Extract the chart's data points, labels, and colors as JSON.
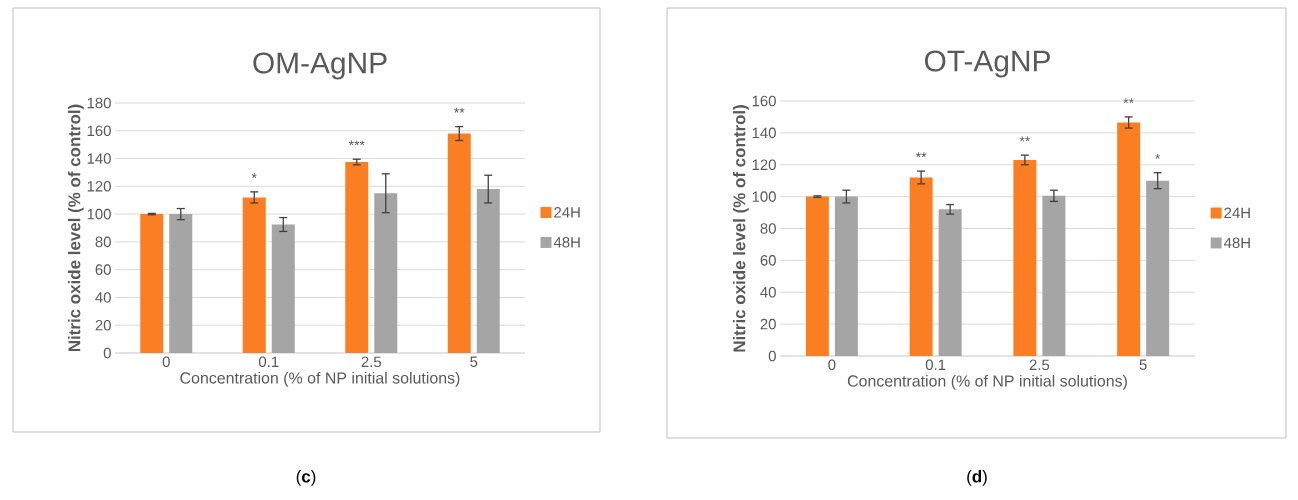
{
  "chart_data": [
    {
      "type": "bar",
      "title": "OM-AgNP",
      "xlabel": "Concentration (% of NP initial solutions)",
      "ylabel": "Nitric oxide level (% of control)",
      "categories": [
        "0",
        "0.1",
        "2.5",
        "5"
      ],
      "series": [
        {
          "name": "24H",
          "color": "#fb7f22",
          "values": [
            100,
            112,
            137.5,
            158
          ],
          "errors": [
            0.5,
            4,
            2,
            5
          ],
          "value_labels": [
            null,
            "*",
            "***",
            "**"
          ]
        },
        {
          "name": "48H",
          "color": "#a5a5a5",
          "values": [
            100,
            92.5,
            115,
            118
          ],
          "errors": [
            4,
            5,
            14,
            10
          ]
        }
      ],
      "ylim": [
        0,
        180
      ],
      "yticks": [
        0,
        20,
        40,
        60,
        80,
        100,
        120,
        140,
        160,
        180
      ],
      "grid": "y",
      "legend": "right",
      "annotations": [
        "(**c**)"
      ]
    },
    {
      "type": "bar",
      "title": "OT-AgNP",
      "xlabel": "Concentration (% of NP initial solutions)",
      "ylabel": "Nitric oxide level (% of control)",
      "categories": [
        "0",
        "0.1",
        "2.5",
        "5"
      ],
      "series": [
        {
          "name": "24H",
          "color": "#fb7f22",
          "values": [
            100,
            112,
            123,
            146.5
          ],
          "errors": [
            0.5,
            4,
            3,
            3.5
          ],
          "value_labels": [
            null,
            "**",
            "**",
            "**"
          ]
        },
        {
          "name": "48H",
          "color": "#a5a5a5",
          "values": [
            100,
            92,
            100.5,
            110
          ],
          "errors": [
            4,
            3,
            3.5,
            5
          ],
          "value_labels": [
            null,
            null,
            null,
            "*"
          ]
        }
      ],
      "ylim": [
        0,
        160
      ],
      "yticks": [
        0,
        20,
        40,
        60,
        80,
        100,
        120,
        140,
        160
      ],
      "grid": "y",
      "legend": "right",
      "annotations": [
        "(**d**)"
      ]
    }
  ]
}
